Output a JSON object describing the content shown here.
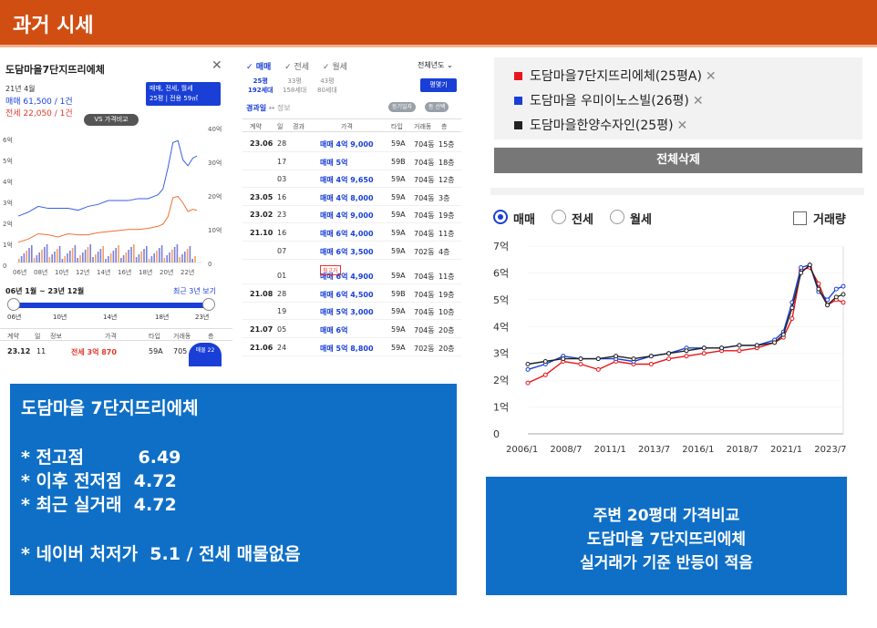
{
  "header": {
    "title": "과거 시세"
  },
  "listing": {
    "name": "도담마을7단지뜨리에체",
    "date": "21년 4월",
    "sale": "매매 61,500 / 1건",
    "jeonse": "전세 22,050 / 1건",
    "deal_type_box": "매매, 전세, 월세",
    "area": "25평",
    "area_exclusive": "전용 59㎡",
    "vs_button": "VS 가격비교",
    "range_label": "06년 1월 ~ 23년 12월",
    "recent_label": "최근 3년 보기",
    "slider_years": [
      "06년",
      "10년",
      "14년",
      "18년",
      "23년"
    ],
    "table_headers": [
      "계약",
      "일",
      "정보",
      "가격",
      "타입",
      "거래동",
      "층"
    ],
    "last_row": {
      "date": "23.12",
      "day": "11",
      "price": "전세 3억 870",
      "type": "59A",
      "dong": "705"
    },
    "badge": "매물\n22",
    "chart": {
      "left_ticks": [
        "6억",
        "5억",
        "4억",
        "3억",
        "2억",
        "1억",
        "0"
      ],
      "right_ticks": [
        "40억",
        "30억",
        "20억",
        "10억",
        "0"
      ],
      "x_ticks": [
        "06년",
        "08년",
        "10년",
        "12년",
        "14년",
        "16년",
        "18년",
        "20년",
        "22년"
      ]
    }
  },
  "transactions": {
    "tabs": [
      "매매",
      "전세",
      "월세"
    ],
    "year_filter": "전체년도",
    "sizes": [
      {
        "pyeong": "25평",
        "households": "192세대"
      },
      {
        "pyeong": "33평",
        "households": "158세대"
      },
      {
        "pyeong": "43평",
        "households": "80세대"
      }
    ],
    "compare_button": "평몇기",
    "filter_label": "경과일",
    "filter_info": "정보",
    "chip1": "등기일자",
    "chip2": "동 선택",
    "headers": [
      "계약",
      "일",
      "경과",
      "가격",
      "타입",
      "거래동",
      "층"
    ],
    "rows": [
      {
        "date": "23.06",
        "day": "28",
        "price": "매매 4억 9,000",
        "type": "59A",
        "dong": "704동",
        "floor": "15층"
      },
      {
        "date": "",
        "day": "17",
        "price": "매매 5억",
        "type": "59B",
        "dong": "704동",
        "floor": "18층"
      },
      {
        "date": "",
        "day": "03",
        "price": "매매 4억 9,650",
        "type": "59A",
        "dong": "704동",
        "floor": "12층"
      },
      {
        "date": "23.05",
        "day": "16",
        "price": "매매 4억 8,000",
        "type": "59A",
        "dong": "704동",
        "floor": "3층"
      },
      {
        "date": "23.02",
        "day": "23",
        "price": "매매 4억 9,000",
        "type": "59A",
        "dong": "704동",
        "floor": "19층"
      },
      {
        "date": "21.10",
        "day": "16",
        "price": "매매 6억 4,000",
        "type": "59A",
        "dong": "704동",
        "floor": "11층"
      },
      {
        "date": "",
        "day": "07",
        "price": "매매 6억 3,500",
        "type": "59A",
        "dong": "702동",
        "floor": "4층"
      },
      {
        "date": "",
        "day": "01",
        "price": "매매 6억 4,900",
        "type": "59A",
        "dong": "704동",
        "floor": "11층"
      },
      {
        "date": "21.08",
        "day": "28",
        "price": "매매 6억 4,500",
        "type": "59B",
        "dong": "704동",
        "floor": "19층"
      },
      {
        "date": "",
        "day": "19",
        "price": "매매 5억 3,000",
        "type": "59A",
        "dong": "704동",
        "floor": "10층"
      },
      {
        "date": "21.07",
        "day": "05",
        "price": "매매 6억",
        "type": "59A",
        "dong": "704동",
        "floor": "20층"
      },
      {
        "date": "21.06",
        "day": "24",
        "price": "매매 5억 8,800",
        "type": "59A",
        "dong": "702동",
        "floor": "20층"
      }
    ],
    "low_badge": "최고가"
  },
  "legend": {
    "items": [
      {
        "label": "도담마을7단지뜨리에체(25평A)",
        "color": "#e8161b"
      },
      {
        "label": "도담마을 우미이노스빌(26평)",
        "color": "#1a3fd6"
      },
      {
        "label": "도담마을한양수자인(25평)",
        "color": "#222222"
      }
    ],
    "close": "✕",
    "delete_all": "전체삭제"
  },
  "comparison": {
    "radios": [
      "매매",
      "전세",
      "월세"
    ],
    "volume": "거래량",
    "y_ticks": [
      "7억",
      "6억",
      "5억",
      "4억",
      "3억",
      "2억",
      "1억",
      "0"
    ],
    "x_ticks": [
      "2006/1",
      "2008/7",
      "2011/1",
      "2013/7",
      "2016/1",
      "2018/7",
      "2021/1",
      "2023/7"
    ]
  },
  "note_left": {
    "title": "도담마을 7단지뜨리에체",
    "lines": [
      "* 전고점         6.49",
      "* 이후 전저점  4.72",
      "* 최근 실거래  4.72",
      "* 네이버 처저가  5.1 / 전세 매물없음"
    ]
  },
  "note_right": {
    "lines": [
      "주변 20평대 가격비교",
      "도담마을 7단지뜨리에체",
      "실거래가 기준 반등이 적음"
    ]
  },
  "chart_data": {
    "type": "line",
    "x": [
      2006.0,
      2007.0,
      2008.0,
      2009.0,
      2010.0,
      2011.0,
      2012.0,
      2013.0,
      2014.0,
      2015.0,
      2016.0,
      2017.0,
      2018.0,
      2019.0,
      2020.0,
      2020.5,
      2021.0,
      2021.5,
      2022.0,
      2022.5,
      2023.0,
      2023.5,
      2023.9
    ],
    "series": [
      {
        "name": "도담마을7단지뜨리에체(25평A)",
        "color": "#e8161b",
        "values": [
          1.9,
          2.2,
          2.7,
          2.6,
          2.4,
          2.7,
          2.6,
          2.6,
          2.8,
          2.9,
          3.0,
          3.1,
          3.1,
          3.2,
          3.4,
          3.6,
          4.3,
          6.1,
          6.2,
          5.6,
          4.8,
          5.0,
          4.9
        ]
      },
      {
        "name": "도담마을 우미이노스빌(26평)",
        "color": "#1a3fd6",
        "values": [
          2.4,
          2.6,
          2.9,
          2.8,
          2.8,
          2.8,
          2.7,
          2.9,
          3.0,
          3.2,
          3.2,
          3.2,
          3.3,
          3.3,
          3.5,
          3.8,
          4.9,
          6.2,
          6.3,
          5.3,
          5.0,
          5.4,
          5.5
        ]
      },
      {
        "name": "도담마을한양수자인(25평)",
        "color": "#222222",
        "values": [
          2.6,
          2.7,
          2.8,
          2.8,
          2.8,
          2.9,
          2.8,
          2.9,
          3.0,
          3.1,
          3.2,
          3.2,
          3.3,
          3.3,
          3.4,
          3.7,
          4.7,
          6.0,
          6.3,
          5.4,
          4.8,
          5.1,
          5.2
        ]
      }
    ],
    "ylim": [
      0,
      7
    ],
    "ylabel": "",
    "xlabel": ""
  }
}
